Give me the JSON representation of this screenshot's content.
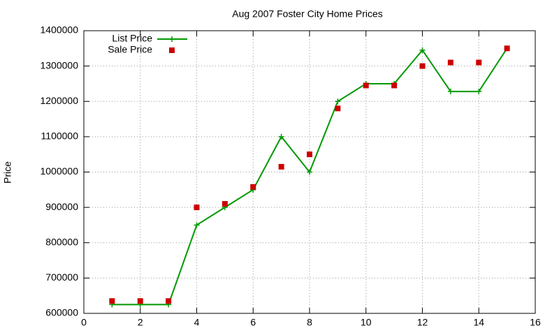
{
  "chart_data": {
    "type": "line",
    "title": "Aug 2007 Foster City Home Prices",
    "y_label": "Price",
    "x": [
      1,
      2,
      3,
      4,
      5,
      6,
      7,
      8,
      9,
      10,
      11,
      12,
      13,
      14,
      15
    ],
    "series": [
      {
        "name": "List Price",
        "color": "#009900",
        "style": "linespoints",
        "values": [
          625000,
          625000,
          625000,
          850000,
          900000,
          950000,
          1100000,
          1000000,
          1200000,
          1250000,
          1250000,
          1345000,
          1228000,
          1228000,
          1350000
        ]
      },
      {
        "name": "Sale Price",
        "color": "#cc0000",
        "style": "points",
        "values": [
          635000,
          635000,
          635000,
          900000,
          910000,
          958000,
          1015000,
          1050000,
          1180000,
          1245000,
          1245000,
          1300000,
          1310000,
          1310000,
          1350000
        ]
      }
    ],
    "xlim": [
      0,
      16
    ],
    "xticks": [
      0,
      2,
      4,
      6,
      8,
      10,
      12,
      14,
      16
    ],
    "ylim": [
      600000,
      1400000
    ],
    "yticks": [
      600000,
      700000,
      800000,
      900000,
      1000000,
      1100000,
      1200000,
      1300000,
      1400000
    ],
    "grid": true,
    "legend": "top-left"
  }
}
